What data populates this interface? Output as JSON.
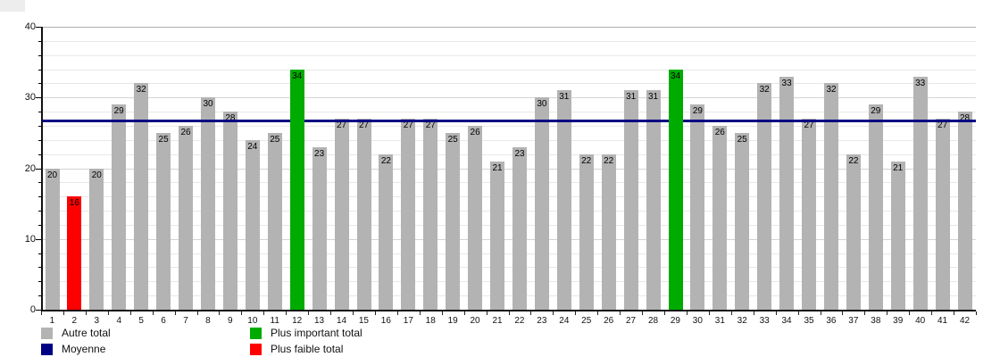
{
  "chart_data": {
    "type": "bar",
    "title": "",
    "categories": [
      "1",
      "2",
      "3",
      "4",
      "5",
      "6",
      "7",
      "8",
      "9",
      "10",
      "11",
      "12",
      "13",
      "14",
      "15",
      "16",
      "17",
      "18",
      "19",
      "20",
      "21",
      "22",
      "23",
      "24",
      "25",
      "26",
      "27",
      "28",
      "29",
      "30",
      "31",
      "32",
      "33",
      "34",
      "35",
      "36",
      "37",
      "38",
      "39",
      "40",
      "41",
      "42"
    ],
    "values": [
      20,
      16,
      20,
      29,
      32,
      25,
      26,
      30,
      28,
      24,
      25,
      34,
      23,
      27,
      27,
      22,
      27,
      27,
      25,
      26,
      21,
      23,
      30,
      31,
      22,
      22,
      31,
      31,
      34,
      29,
      26,
      25,
      32,
      33,
      27,
      32,
      22,
      29,
      21,
      33,
      27,
      28
    ],
    "highlight_max_indices": [
      11,
      28
    ],
    "highlight_min_index": 1,
    "average": 26.71,
    "ylim": [
      0,
      40
    ],
    "y_major_ticks": [
      0,
      10,
      20,
      30,
      40
    ],
    "y_minor_step": 2,
    "grid": "horizontal-every-2",
    "legend_position": "bottom",
    "legend": [
      {
        "label": "Autre total",
        "color": "#b3b3b3"
      },
      {
        "label": "Moyenne",
        "color": "#000082"
      },
      {
        "label": "Plus important total",
        "color": "#00ab00"
      },
      {
        "label": "Plus faible total",
        "color": "#ff0000"
      }
    ],
    "colors": {
      "bar": "#b3b3b3",
      "max": "#00ab00",
      "min": "#ff0000",
      "average_line": "#000082",
      "grid_minor": "#e8e8e8",
      "grid_major": "#d4d4d4",
      "grid_top": "#adadad"
    }
  }
}
